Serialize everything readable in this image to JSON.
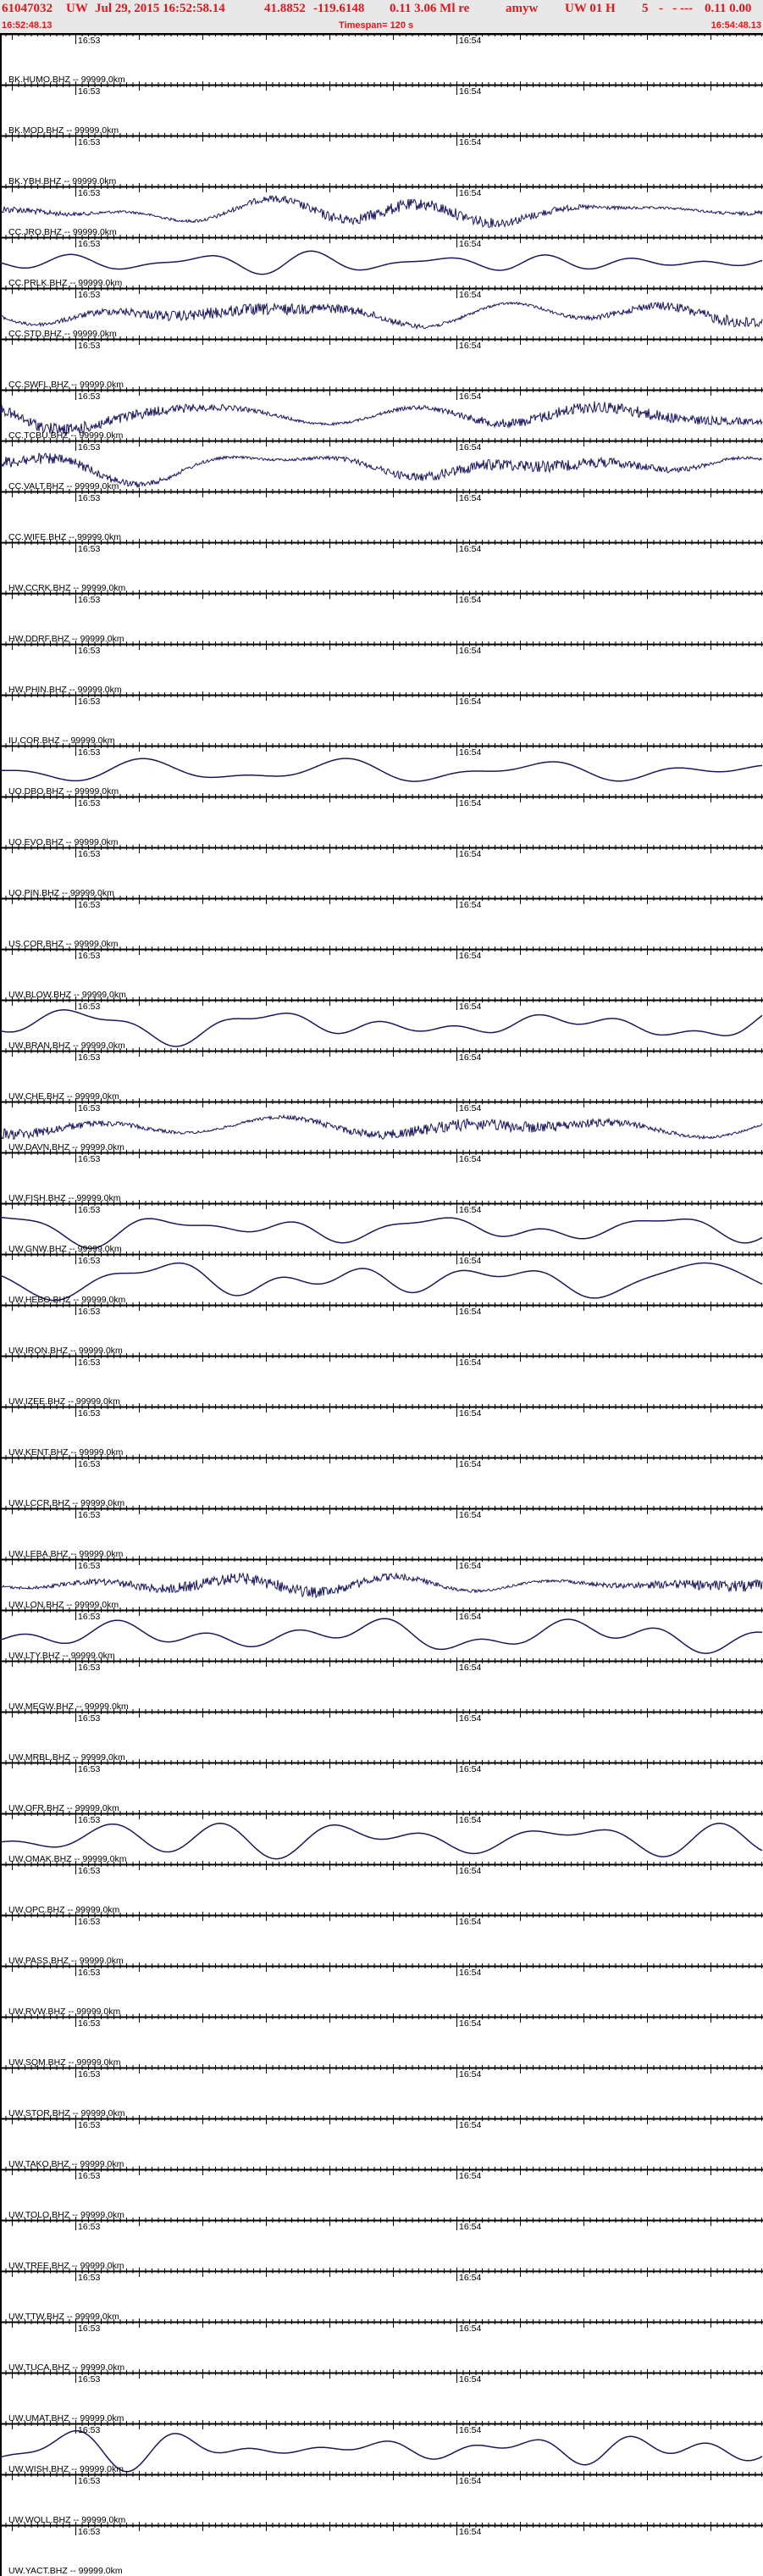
{
  "header": {
    "event_id": "61047032",
    "network": "UW",
    "origin_time": "Jul 29, 2015 16:52:58.14",
    "latitude": "41.8852",
    "longitude": "-119.6148",
    "magnitude_info": "0.11 3.06 Ml re",
    "analyst": "amyw",
    "source": "UW 01 H",
    "count": "5",
    "flags": "-   - ---",
    "values": "0.11 0.00",
    "start_time": "16:52:48.13",
    "timespan": "Timespan= 120 s",
    "end_time": "16:54:48.13"
  },
  "axis": {
    "tick_labels": [
      "16:53",
      "16:54"
    ]
  },
  "colors": {
    "trace": "#1a1760",
    "header_text": "#e8141a",
    "header_bg": "#e8e8e8"
  },
  "channels": [
    {
      "label": "BK.HUMO.BHZ -- 99999.0km",
      "waveform": "none"
    },
    {
      "label": "BK.MOD.BHZ -- 99999.0km",
      "waveform": "none"
    },
    {
      "label": "BK.YBH.BHZ -- 99999.0km",
      "waveform": "none"
    },
    {
      "label": "CC.JRO.BHZ -- 99999.0km",
      "waveform": "noisy"
    },
    {
      "label": "CC.PRLK.BHZ -- 99999.0km",
      "waveform": "smooth"
    },
    {
      "label": "CC.STD.BHZ -- 99999.0km",
      "waveform": "noisy"
    },
    {
      "label": "CC.SWFL.BHZ -- 99999.0km",
      "waveform": "none"
    },
    {
      "label": "CC.TCBU.BHZ -- 99999.0km",
      "waveform": "noisy"
    },
    {
      "label": "CC.VALT.BHZ -- 99999.0km",
      "waveform": "noisy"
    },
    {
      "label": "CC.WIFE.BHZ -- 99999.0km",
      "waveform": "none"
    },
    {
      "label": "HW.CCRK.BHZ -- 99999.0km",
      "waveform": "none"
    },
    {
      "label": "HW.DDRF.BHZ -- 99999.0km",
      "waveform": "none"
    },
    {
      "label": "HW.PHIN.BHZ -- 99999.0km",
      "waveform": "none"
    },
    {
      "label": "IU.COR.BHZ -- 99999.0km",
      "waveform": "none"
    },
    {
      "label": "UO.DBO.BHZ -- 99999.0km",
      "waveform": "smooth"
    },
    {
      "label": "UO.EVO.BHZ -- 99999.0km",
      "waveform": "none"
    },
    {
      "label": "UO.PIN.BHZ -- 99999.0km",
      "waveform": "none"
    },
    {
      "label": "US.COR.BHZ -- 99999.0km",
      "waveform": "none"
    },
    {
      "label": "UW.BLOW.BHZ -- 99999.0km",
      "waveform": "none"
    },
    {
      "label": "UW.BRAN.BHZ -- 99999.0km",
      "waveform": "smooth"
    },
    {
      "label": "UW.CHE.BHZ -- 99999.0km",
      "waveform": "none"
    },
    {
      "label": "UW.DAVN.BHZ -- 99999.0km",
      "waveform": "noisy"
    },
    {
      "label": "UW.FISH.BHZ -- 99999.0km",
      "waveform": "none"
    },
    {
      "label": "UW.GNW.BHZ -- 99999.0km",
      "waveform": "smooth"
    },
    {
      "label": "UW.HEBO.BHZ -- 99999.0km",
      "waveform": "smooth"
    },
    {
      "label": "UW.IRON.BHZ -- 99999.0km",
      "waveform": "none"
    },
    {
      "label": "UW.IZEE.BHZ -- 99999.0km",
      "waveform": "none"
    },
    {
      "label": "UW.KENT.BHZ -- 99999.0km",
      "waveform": "none"
    },
    {
      "label": "UW.LCCR.BHZ -- 99999.0km",
      "waveform": "none"
    },
    {
      "label": "UW.LEBA.BHZ -- 99999.0km",
      "waveform": "none"
    },
    {
      "label": "UW.LON.BHZ -- 99999.0km",
      "waveform": "noisy"
    },
    {
      "label": "UW.LTY.BHZ -- 99999.0km",
      "waveform": "smooth"
    },
    {
      "label": "UW.MEGW.BHZ -- 99999.0km",
      "waveform": "none"
    },
    {
      "label": "UW.MRBL.BHZ -- 99999.0km",
      "waveform": "none"
    },
    {
      "label": "UW.OFR.BHZ -- 99999.0km",
      "waveform": "none"
    },
    {
      "label": "UW.OMAK.BHZ -- 99999.0km",
      "waveform": "smooth"
    },
    {
      "label": "UW.OPC.BHZ -- 99999.0km",
      "waveform": "none"
    },
    {
      "label": "UW.PASS.BHZ -- 99999.0km",
      "waveform": "none"
    },
    {
      "label": "UW.RVW.BHZ -- 99999.0km",
      "waveform": "none"
    },
    {
      "label": "UW.SQM.BHZ -- 99999.0km",
      "waveform": "none"
    },
    {
      "label": "UW.STOR.BHZ -- 99999.0km",
      "waveform": "none"
    },
    {
      "label": "UW.TAKO.BHZ -- 99999.0km",
      "waveform": "none"
    },
    {
      "label": "UW.TOLO.BHZ -- 99999.0km",
      "waveform": "none"
    },
    {
      "label": "UW.TREE.BHZ -- 99999.0km",
      "waveform": "none"
    },
    {
      "label": "UW.TTW.BHZ -- 99999.0km",
      "waveform": "none"
    },
    {
      "label": "UW.TUCA.BHZ -- 99999.0km",
      "waveform": "none"
    },
    {
      "label": "UW.UMAT.BHZ -- 99999.0km",
      "waveform": "none"
    },
    {
      "label": "UW.WISH.BHZ -- 99999.0km",
      "waveform": "smooth"
    },
    {
      "label": "UW.WOLL.BHZ -- 99999.0km",
      "waveform": "none"
    },
    {
      "label": "UW.YACT.BHZ -- 99999.0km",
      "waveform": "none"
    }
  ]
}
